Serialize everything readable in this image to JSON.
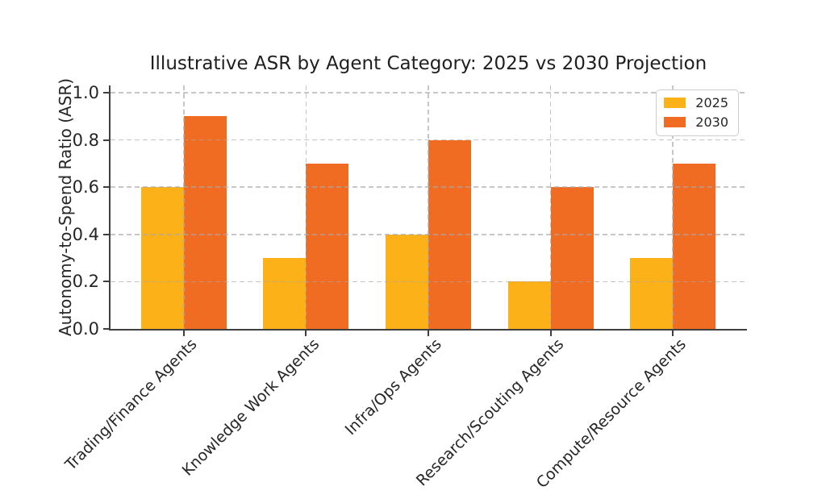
{
  "chart_data": {
    "type": "bar",
    "title": "Illustrative ASR by Agent Category: 2025 vs 2030 Projection",
    "xlabel": "",
    "ylabel": "Autonomy-to-Spend Ratio (ASR)",
    "categories": [
      "Trading/Finance Agents",
      "Knowledge Work Agents",
      "Infra/Ops Agents",
      "Research/Scouting Agents",
      "Compute/Resource Agents"
    ],
    "series": [
      {
        "name": "2025",
        "color": "#FBB117",
        "values": [
          0.6,
          0.3,
          0.4,
          0.2,
          0.3
        ]
      },
      {
        "name": "2030",
        "color": "#F06C23",
        "values": [
          0.9,
          0.7,
          0.8,
          0.6,
          0.7
        ]
      }
    ],
    "ylim": [
      0.0,
      1.03
    ],
    "yticks": [
      0.0,
      0.2,
      0.4,
      0.6,
      0.8,
      1.0
    ],
    "ytick_labels": [
      "0.0",
      "0.2",
      "0.4",
      "0.6",
      "0.8",
      "1.0"
    ],
    "bar_width_data_units": 0.35,
    "x_tick_rotation_deg": 45,
    "grid": true,
    "grid_style": "dashed",
    "legend_position": "upper right",
    "colors": {
      "grid": "#a8a8a8",
      "axis": "#3f3f3f",
      "text": "#262626",
      "background": "#ffffff"
    }
  }
}
